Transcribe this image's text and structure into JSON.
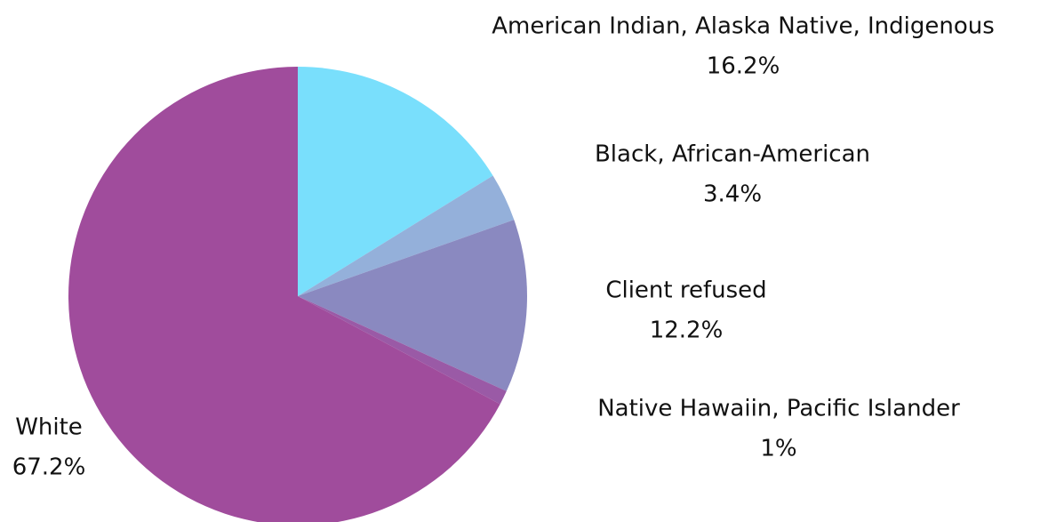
{
  "chart_data": {
    "type": "pie",
    "categories": [
      "American Indian, Alaska Native, Indigenous",
      "Black, African-American",
      "Client refused",
      "Native Hawaiin, Pacific Islander",
      "White"
    ],
    "values": [
      16.2,
      3.4,
      12.2,
      1,
      67.2
    ],
    "value_labels": [
      "16.2%",
      "3.4%",
      "12.2%",
      "1%",
      "67.2%"
    ],
    "colors": [
      "#79dffc",
      "#94b0da",
      "#8a89c0",
      "#9a5aa6",
      "#a04c9c"
    ]
  }
}
